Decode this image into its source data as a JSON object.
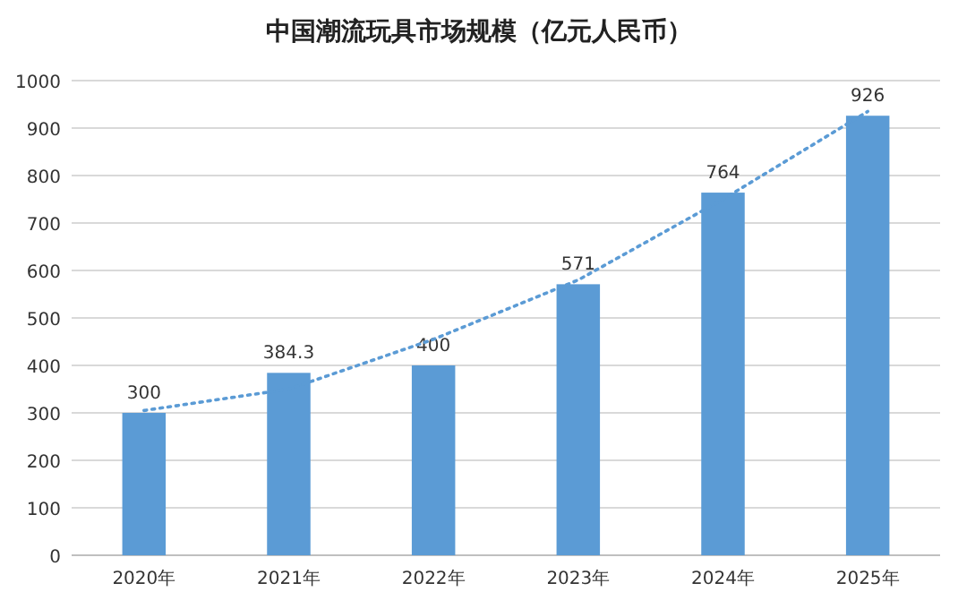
{
  "chart_data": {
    "type": "bar",
    "title": "中国潮流玩具市场规模（亿元人民币）",
    "categories": [
      "2020年",
      "2021年",
      "2022年",
      "2023年",
      "2024年",
      "2025年"
    ],
    "series": [
      {
        "color": "#5b9bd5",
        "values": [
          300,
          384.3,
          400,
          571,
          764,
          926
        ],
        "value_labels": [
          "300",
          "384.3",
          "400",
          "571",
          "764",
          "926"
        ]
      },
      {
        "type": "line",
        "color": "#5b9bd5",
        "line_style": "dotted",
        "x": [
          "2020年",
          "2021年",
          "2022年",
          "2023年",
          "2024年",
          "2025年"
        ],
        "values": [
          305,
          350,
          455,
          580,
          750,
          935
        ]
      }
    ],
    "ylim": [
      0,
      1000
    ],
    "yticks": [
      0,
      100,
      200,
      300,
      400,
      500,
      600,
      700,
      800,
      900,
      1000
    ],
    "grid": "y"
  }
}
